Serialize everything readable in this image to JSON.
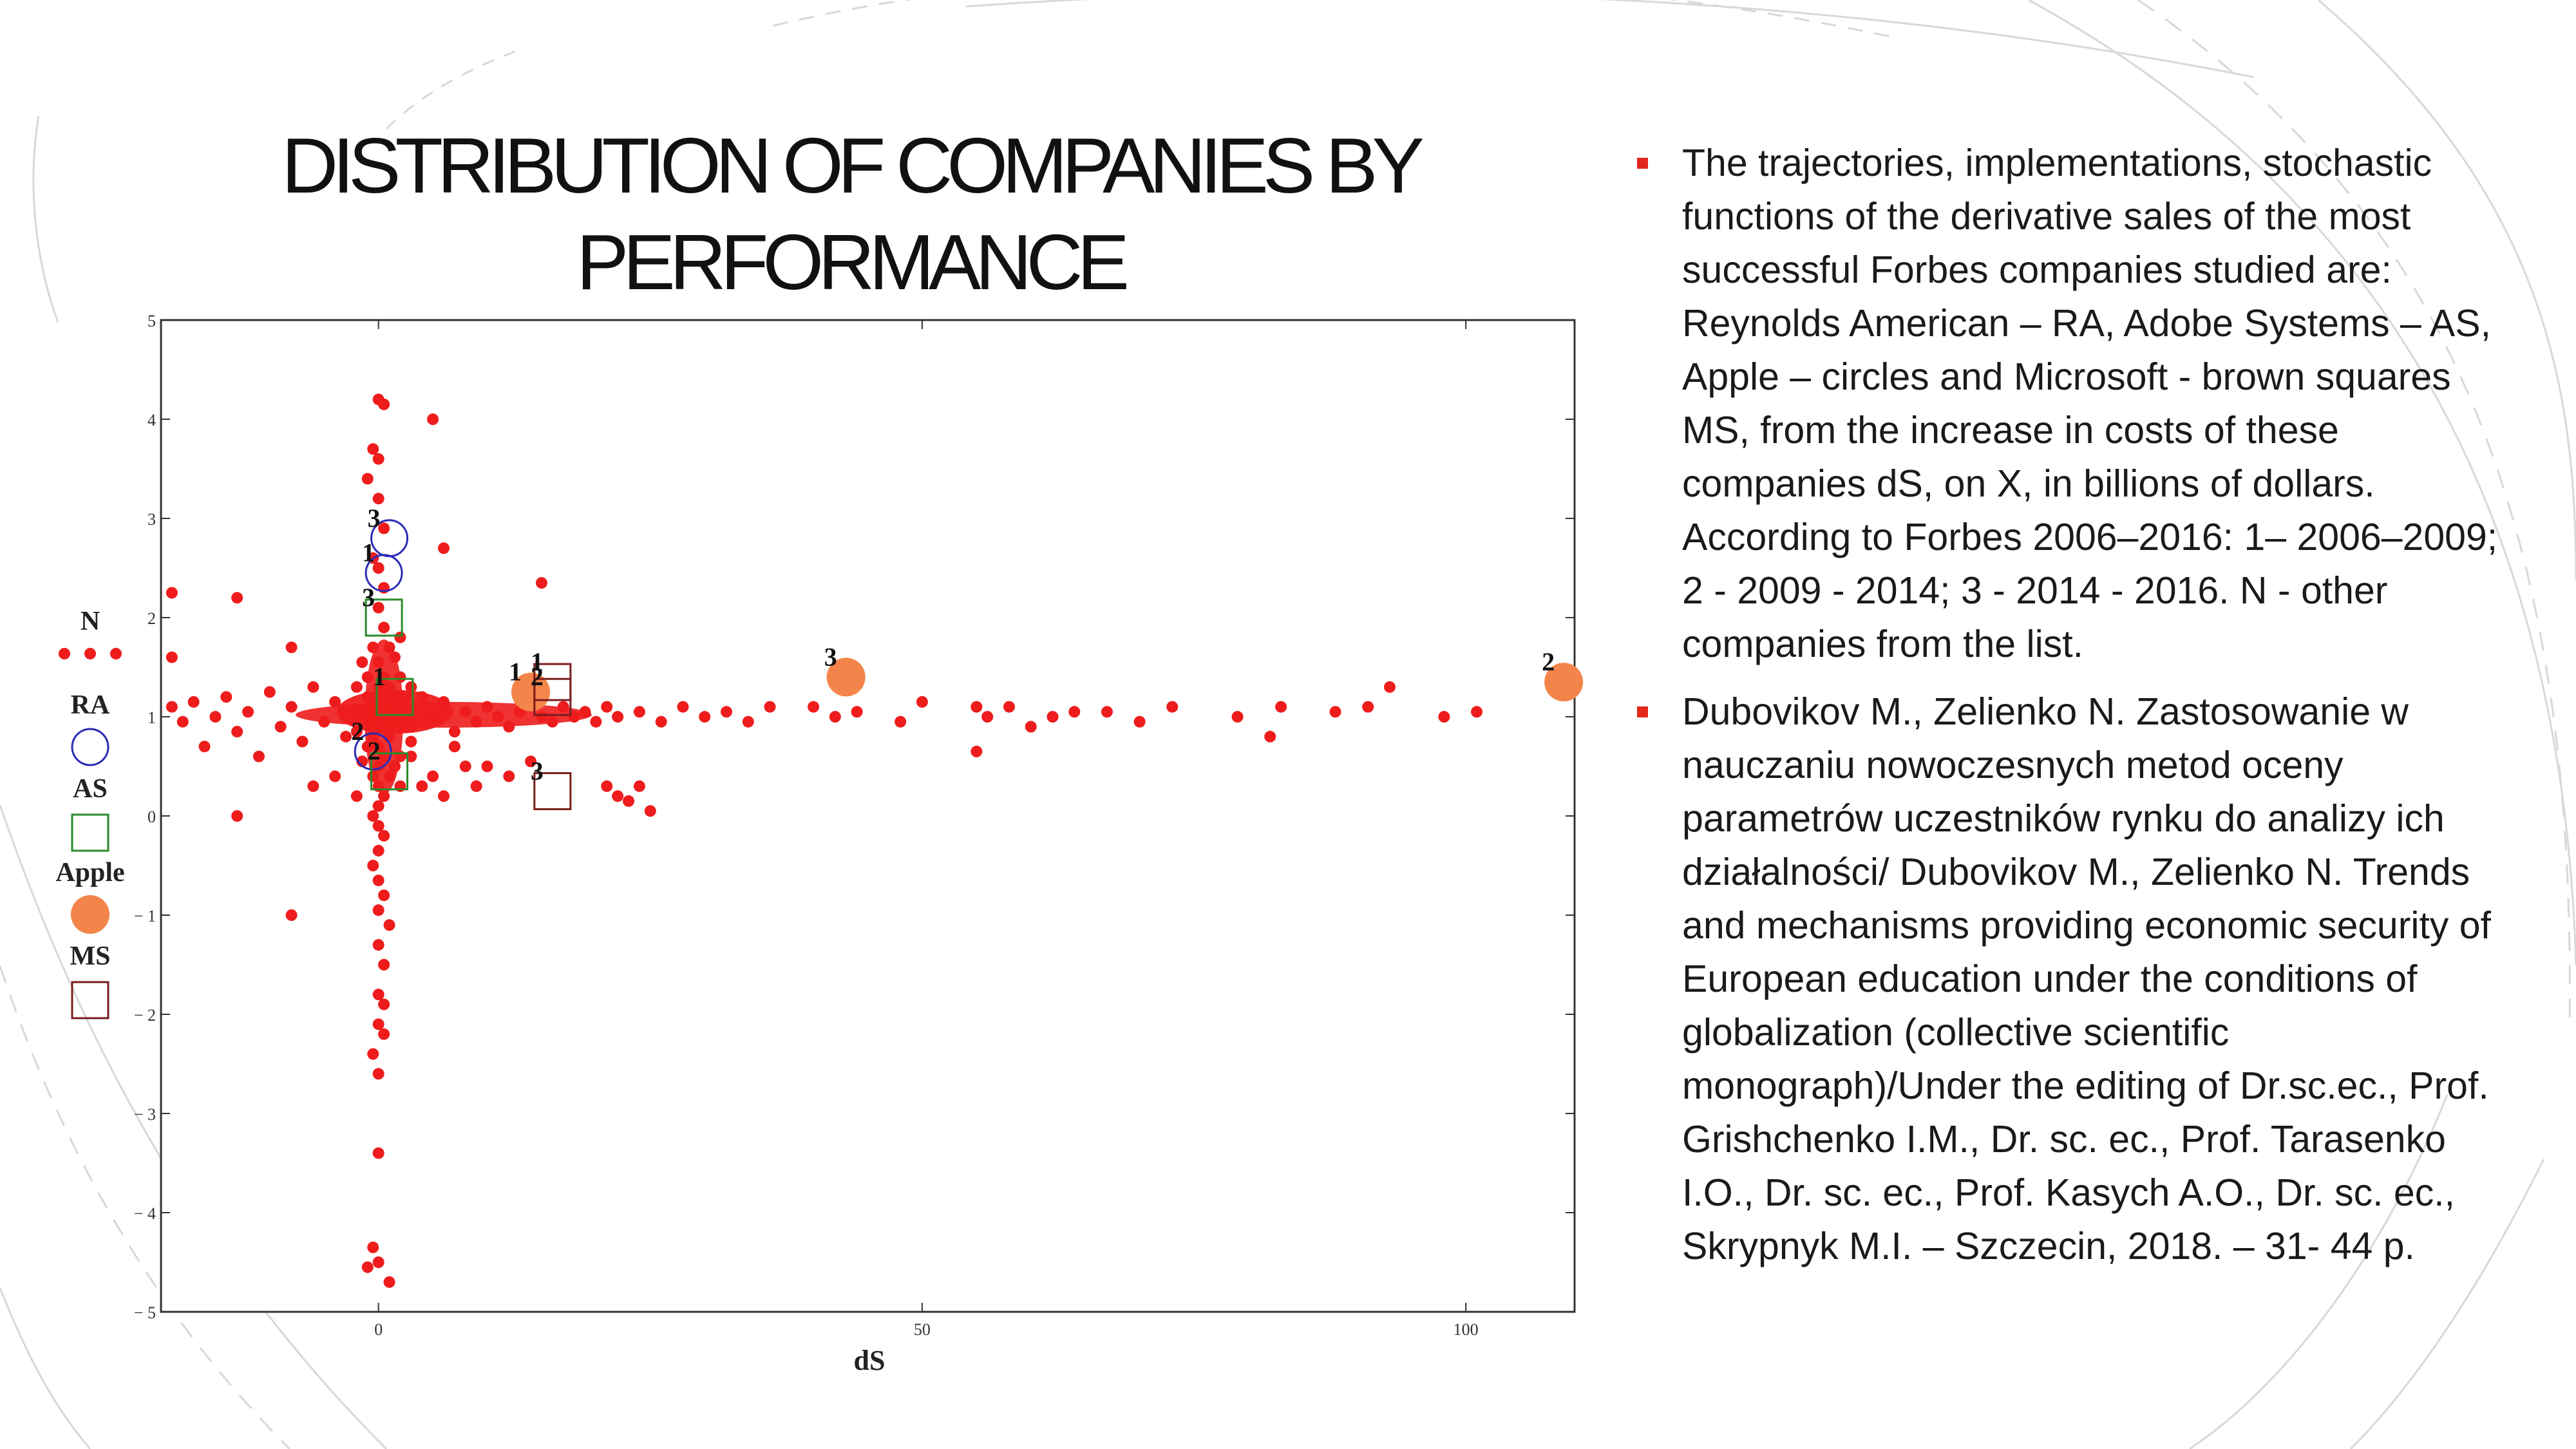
{
  "slide": {
    "title": "DISTRIBUTION OF COMPANIES BY PERFORMANCE",
    "accent_color": "#e2261c",
    "bullets": [
      "The trajectories, implementations, stochastic functions of the derivative sales of the most successful Forbes companies studied are: Reynolds American –  RA, Adobe Systems – AS, Apple – circles and Microsoft - brown squares MS, from the increase in costs of these companies dS, on X, in billions of dollars. According to Forbes 2006–2016: 1– 2006–2009; 2 - 2009 - 2014; 3 - 2014 - 2016. N - other companies from the list.",
      "Dubovikov M., Zelienko N.  Zastosowanie w nauczaniu nowoczesnych metod oceny parametrów uczestników rynku do analizy ich działalności/ Dubovikov M., Zelienko N. Trends and mechanisms providing economic security of European education under the conditions of globalization (collective scientific monograph)/Under the editing of Dr.sc.ec., Prof. Grishchenko I.M., Dr. sc. ec., Prof. Tarasenko I.O., Dr. sc. ec., Prof. Kasych A.O., Dr. sc. ec., Skrypnyk M.I. – Szczecin, 2018. – 31- 44 p."
    ]
  },
  "chart_data": {
    "type": "scatter",
    "xlabel": "dS",
    "ylabel": "",
    "xlim": [
      -20,
      110
    ],
    "ylim": [
      -5,
      5
    ],
    "xticks": [
      "0",
      "50",
      "100"
    ],
    "yticks": [
      "-5",
      "-4",
      "-3",
      "-2",
      "-1",
      "0",
      "1",
      "2",
      "3",
      "4",
      "5"
    ],
    "grid": false,
    "legend_position": "left",
    "legend": [
      "N",
      "RA",
      "AS",
      "Apple",
      "MS"
    ],
    "colors": {
      "N": "#ee1c1c",
      "RA": "#2b2bb5",
      "AS": "#2a8a2a",
      "Apple": "#f4854a",
      "MS": "#7a1c1c"
    },
    "series": [
      {
        "name": "N",
        "points": [
          [
            -19,
            1.1
          ],
          [
            -18,
            0.95
          ],
          [
            -17,
            1.15
          ],
          [
            -16,
            0.7
          ],
          [
            -15,
            1.0
          ],
          [
            -14,
            1.2
          ],
          [
            -13,
            0.85
          ],
          [
            -12,
            1.05
          ],
          [
            -11,
            0.6
          ],
          [
            -10,
            1.25
          ],
          [
            -9,
            0.9
          ],
          [
            -8,
            1.1
          ],
          [
            -7,
            0.75
          ],
          [
            -6,
            1.3
          ],
          [
            -5,
            0.95
          ],
          [
            -4,
            1.15
          ],
          [
            -3,
            0.8
          ],
          [
            -2,
            1.05
          ],
          [
            -1,
            1.2
          ],
          [
            2,
            1.1
          ],
          [
            3,
            0.9
          ],
          [
            4,
            1.2
          ],
          [
            5,
            1.0
          ],
          [
            6,
            1.15
          ],
          [
            7,
            0.85
          ],
          [
            8,
            1.05
          ],
          [
            9,
            0.95
          ],
          [
            10,
            1.1
          ],
          [
            11,
            1.0
          ],
          [
            12,
            0.9
          ],
          [
            13,
            1.05
          ],
          [
            15,
            1.0
          ],
          [
            16,
            0.95
          ],
          [
            17,
            1.1
          ],
          [
            18,
            1.0
          ],
          [
            19,
            1.05
          ],
          [
            20,
            0.95
          ],
          [
            21,
            1.1
          ],
          [
            22,
            1.0
          ],
          [
            24,
            1.05
          ],
          [
            26,
            0.95
          ],
          [
            28,
            1.1
          ],
          [
            30,
            1.0
          ],
          [
            32,
            1.05
          ],
          [
            34,
            0.95
          ],
          [
            36,
            1.1
          ],
          [
            40,
            1.1
          ],
          [
            42,
            1.0
          ],
          [
            44,
            1.05
          ],
          [
            48,
            0.95
          ],
          [
            50,
            1.15
          ],
          [
            55,
            1.1
          ],
          [
            56,
            1.0
          ],
          [
            58,
            1.1
          ],
          [
            60,
            0.9
          ],
          [
            62,
            1.0
          ],
          [
            64,
            1.05
          ],
          [
            67,
            1.05
          ],
          [
            70,
            0.95
          ],
          [
            73,
            1.1
          ],
          [
            79,
            1.0
          ],
          [
            83,
            1.1
          ],
          [
            88,
            1.05
          ],
          [
            91,
            1.1
          ],
          [
            93,
            1.3
          ],
          [
            98,
            1.0
          ],
          [
            101,
            1.05
          ],
          [
            -19,
            2.25
          ],
          [
            -19,
            1.6
          ],
          [
            -13,
            2.2
          ],
          [
            -8,
            1.7
          ],
          [
            -6,
            0.3
          ],
          [
            -4,
            0.4
          ],
          [
            -2,
            0.2
          ],
          [
            3,
            0.6
          ],
          [
            4,
            0.3
          ],
          [
            5,
            0.4
          ],
          [
            6,
            0.2
          ],
          [
            7,
            0.7
          ],
          [
            8,
            0.5
          ],
          [
            9,
            0.3
          ],
          [
            10,
            0.5
          ],
          [
            12,
            0.4
          ],
          [
            14,
            0.55
          ],
          [
            21,
            0.3
          ],
          [
            22,
            0.2
          ],
          [
            23,
            0.15
          ],
          [
            24,
            0.3
          ],
          [
            25,
            0.05
          ],
          [
            15,
            2.35
          ],
          [
            6,
            2.7
          ],
          [
            5,
            4.0
          ],
          [
            -8,
            -1.0
          ],
          [
            -13,
            0.0
          ],
          [
            55,
            0.65
          ],
          [
            82,
            0.8
          ],
          [
            0,
            4.2
          ],
          [
            0.5,
            4.15
          ],
          [
            -0.5,
            3.7
          ],
          [
            0,
            3.6
          ],
          [
            -1,
            3.4
          ],
          [
            0,
            3.2
          ],
          [
            0.5,
            2.9
          ],
          [
            -0.5,
            2.6
          ],
          [
            0,
            2.5
          ],
          [
            0.5,
            2.3
          ],
          [
            0,
            2.1
          ],
          [
            0.5,
            1.9
          ],
          [
            -0.5,
            1.7
          ],
          [
            0,
            1.55
          ],
          [
            0.5,
            1.4
          ],
          [
            0,
            1.3
          ],
          [
            -0.5,
            1.2
          ],
          [
            0,
            1.1
          ],
          [
            0.5,
            1.0
          ],
          [
            0,
            0.9
          ],
          [
            -0.5,
            0.8
          ],
          [
            0,
            0.7
          ],
          [
            0.5,
            0.6
          ],
          [
            0,
            0.5
          ],
          [
            -0.5,
            0.4
          ],
          [
            0,
            0.3
          ],
          [
            0.5,
            0.2
          ],
          [
            0,
            0.1
          ],
          [
            -0.5,
            0.0
          ],
          [
            0,
            -0.1
          ],
          [
            0.5,
            -0.2
          ],
          [
            0,
            -0.35
          ],
          [
            -0.5,
            -0.5
          ],
          [
            0,
            -0.65
          ],
          [
            0.5,
            -0.8
          ],
          [
            0,
            -0.95
          ],
          [
            1,
            -1.1
          ],
          [
            0,
            -1.3
          ],
          [
            0.5,
            -1.5
          ],
          [
            0,
            -1.8
          ],
          [
            0.5,
            -1.9
          ],
          [
            0,
            -2.1
          ],
          [
            0.5,
            -2.2
          ],
          [
            -0.5,
            -2.4
          ],
          [
            0,
            -2.6
          ],
          [
            0,
            -3.4
          ],
          [
            -0.5,
            -4.35
          ],
          [
            0,
            -4.5
          ],
          [
            1,
            -4.7
          ],
          [
            -1,
            -4.55
          ],
          [
            1,
            1.3
          ],
          [
            1,
            0.8
          ],
          [
            2,
            1.4
          ],
          [
            2,
            0.6
          ],
          [
            3,
            1.3
          ],
          [
            3,
            0.75
          ],
          [
            1.5,
            1.6
          ],
          [
            1.5,
            0.5
          ],
          [
            2.5,
            1.2
          ],
          [
            2.5,
            0.9
          ],
          [
            -1,
            1.4
          ],
          [
            -1,
            0.7
          ],
          [
            -2,
            1.3
          ],
          [
            -2,
            0.85
          ],
          [
            -1.5,
            1.55
          ],
          [
            -1.5,
            0.55
          ],
          [
            1,
            1.7
          ],
          [
            1,
            0.4
          ],
          [
            2,
            1.8
          ],
          [
            2,
            0.3
          ]
        ]
      },
      {
        "name": "RA",
        "points": [
          [
            0.5,
            2.45,
            "1"
          ],
          [
            -0.5,
            0.65,
            "2"
          ],
          [
            1,
            2.8,
            "3"
          ]
        ]
      },
      {
        "name": "AS",
        "points": [
          [
            1.5,
            1.2,
            "1"
          ],
          [
            1,
            0.45,
            "2"
          ],
          [
            0.5,
            2.0,
            "3"
          ]
        ]
      },
      {
        "name": "Apple",
        "points": [
          [
            14,
            1.25,
            "1"
          ],
          [
            109,
            1.35,
            "2"
          ],
          [
            43,
            1.4,
            "3"
          ]
        ]
      },
      {
        "name": "MS",
        "points": [
          [
            16,
            1.35,
            "1"
          ],
          [
            16,
            1.2,
            "2"
          ],
          [
            16,
            0.25,
            "3"
          ]
        ]
      }
    ],
    "point_labels": [
      {
        "text": "1",
        "x": 0.5,
        "y": 2.45
      },
      {
        "text": "2",
        "x": -0.5,
        "y": 0.65
      },
      {
        "text": "3",
        "x": 1,
        "y": 2.8
      },
      {
        "text": "1",
        "x": 1.5,
        "y": 1.2
      },
      {
        "text": "2",
        "x": 1,
        "y": 0.45
      },
      {
        "text": "3",
        "x": 0.5,
        "y": 2.0
      },
      {
        "text": "1",
        "x": 14,
        "y": 1.25
      },
      {
        "text": "2",
        "x": 109,
        "y": 1.35
      },
      {
        "text": "3",
        "x": 43,
        "y": 1.4
      },
      {
        "text": "1",
        "x": 16,
        "y": 1.35
      },
      {
        "text": "2",
        "x": 16,
        "y": 1.2
      },
      {
        "text": "3",
        "x": 16,
        "y": 0.25
      }
    ]
  }
}
